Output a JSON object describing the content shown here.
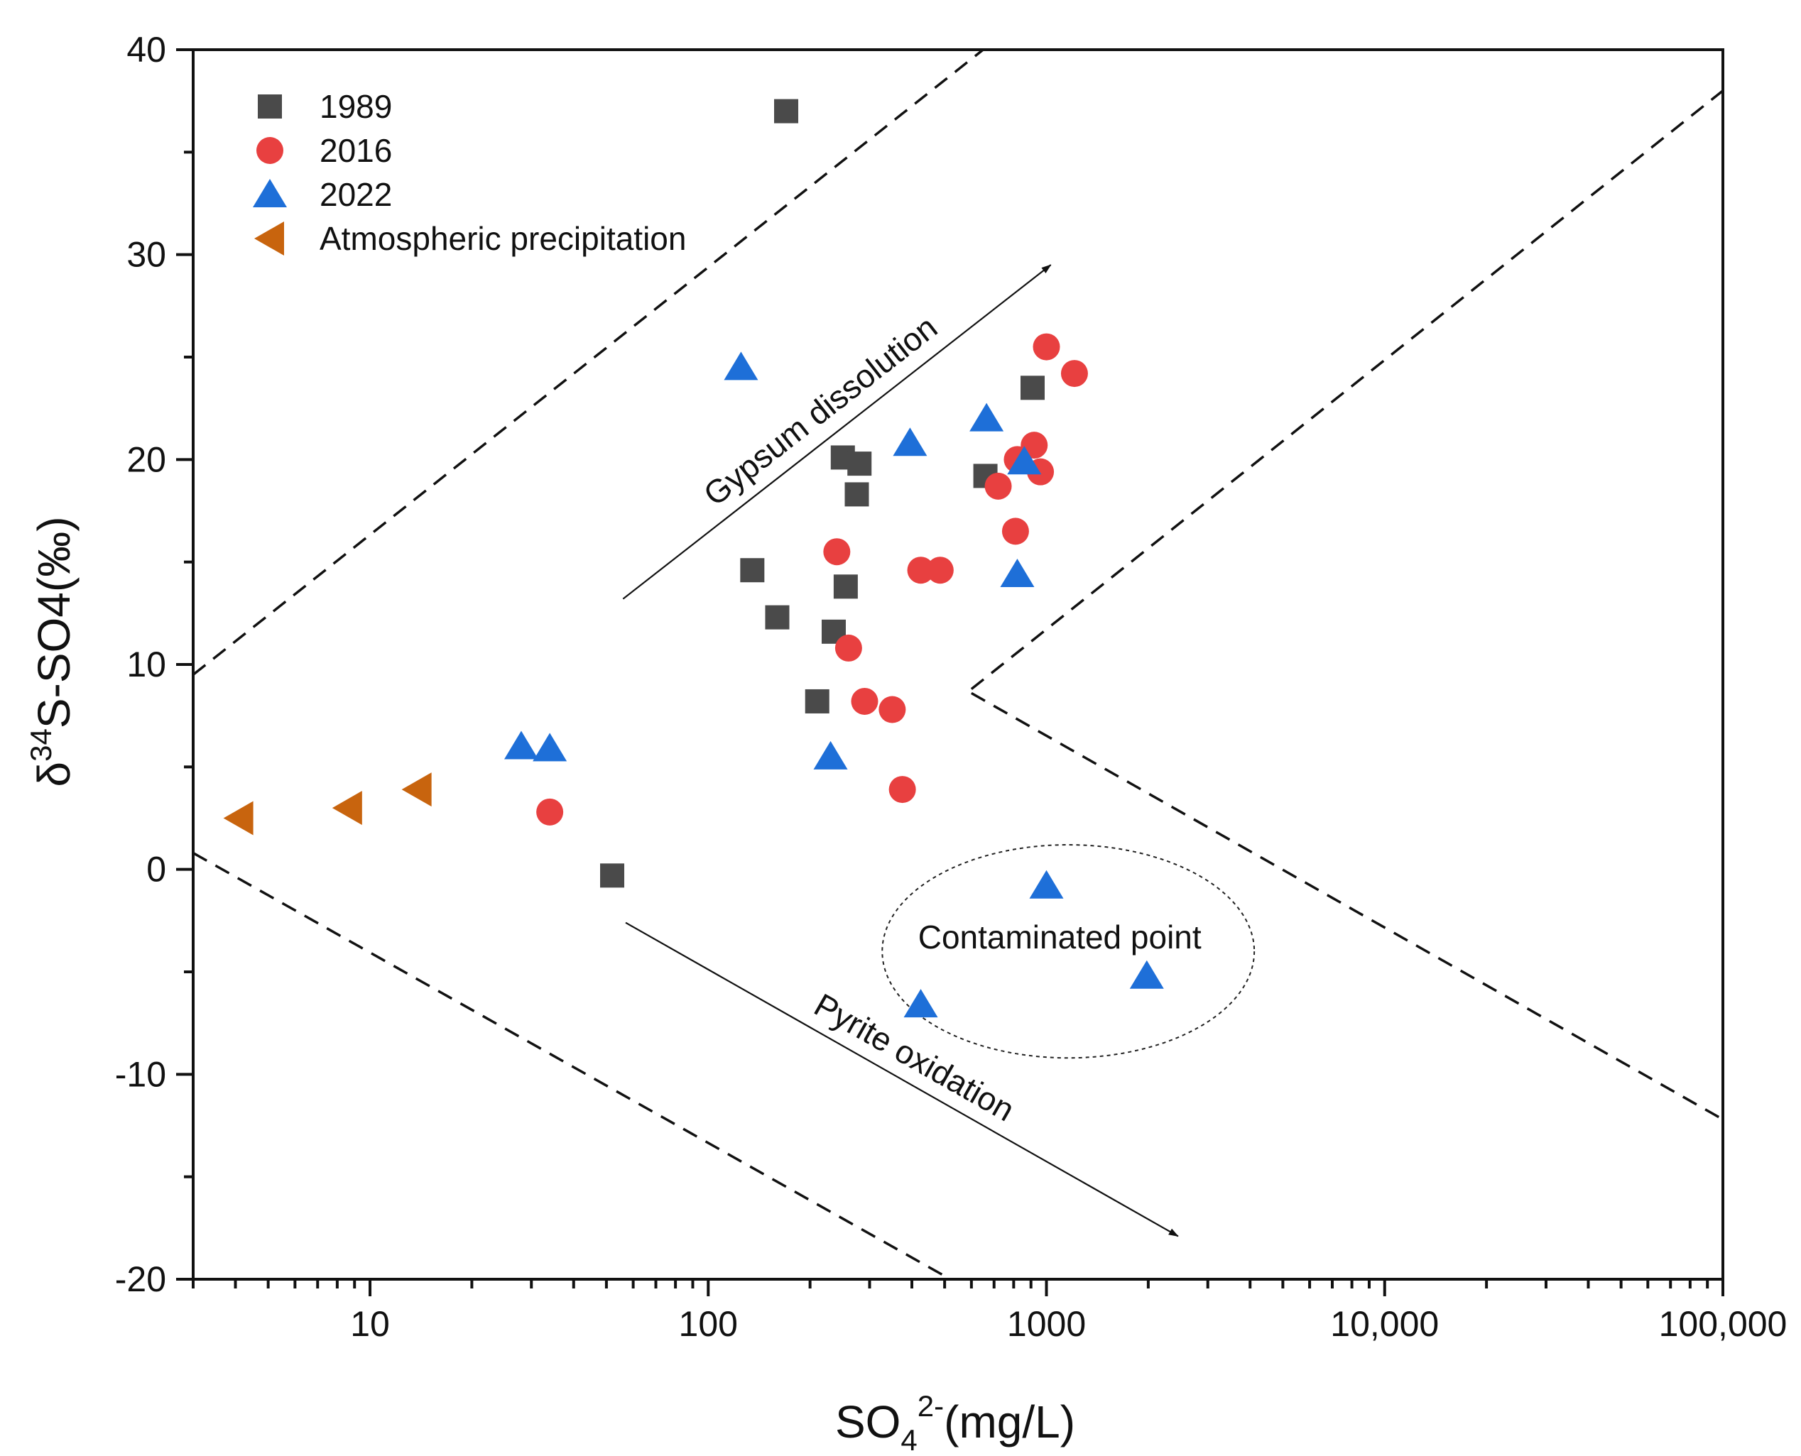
{
  "chart_data": {
    "type": "scatter",
    "title": "",
    "xlabel": {
      "base": "SO",
      "sub": "4",
      "sup": "2-",
      "unit": "(mg/L)"
    },
    "ylabel": {
      "pre": "δ",
      "sup": "34",
      "post": "S-SO4(‰)"
    },
    "xscale": "log",
    "xlim": [
      3,
      100000
    ],
    "ylim": [
      -20,
      40
    ],
    "x_ticks": [
      {
        "value": 10,
        "label": "10"
      },
      {
        "value": 100,
        "label": "100"
      },
      {
        "value": 1000,
        "label": "1000"
      },
      {
        "value": 10000,
        "label": "10,000"
      },
      {
        "value": 100000,
        "label": "100,000"
      }
    ],
    "y_ticks": [
      {
        "value": 40,
        "label": "40"
      },
      {
        "value": 30,
        "label": "30"
      },
      {
        "value": 20,
        "label": "20"
      },
      {
        "value": 10,
        "label": "10"
      },
      {
        "value": 0,
        "label": "0"
      },
      {
        "value": -10,
        "label": "-10"
      },
      {
        "value": -20,
        "label": "-20"
      }
    ],
    "series": [
      {
        "name": "1989",
        "marker": "square",
        "color": "#4a4a4a",
        "points": [
          [
            170,
            37
          ],
          [
            910,
            23.5
          ],
          [
            250,
            20.1
          ],
          [
            280,
            19.8
          ],
          [
            660,
            19.2
          ],
          [
            275,
            18.3
          ],
          [
            135,
            14.6
          ],
          [
            255,
            13.8
          ],
          [
            160,
            12.3
          ],
          [
            235,
            11.6
          ],
          [
            210,
            8.2
          ],
          [
            52,
            -0.3
          ]
        ]
      },
      {
        "name": "2016",
        "marker": "circle",
        "color": "#e84040",
        "points": [
          [
            1000,
            25.5
          ],
          [
            1210,
            24.2
          ],
          [
            920,
            20.7
          ],
          [
            820,
            20.0
          ],
          [
            960,
            19.4
          ],
          [
            720,
            18.7
          ],
          [
            810,
            16.5
          ],
          [
            240,
            15.5
          ],
          [
            425,
            14.6
          ],
          [
            485,
            14.6
          ],
          [
            260,
            10.8
          ],
          [
            290,
            8.2
          ],
          [
            350,
            7.8
          ],
          [
            375,
            3.9
          ],
          [
            34,
            2.8
          ]
        ]
      },
      {
        "name": "2022",
        "marker": "triangle-up",
        "color": "#1e6fd8",
        "points": [
          [
            125,
            24.5
          ],
          [
            665,
            22.0
          ],
          [
            395,
            20.8
          ],
          [
            860,
            19.9
          ],
          [
            820,
            14.4
          ],
          [
            28,
            6.0
          ],
          [
            34,
            5.9
          ],
          [
            230,
            5.5
          ],
          [
            1000,
            -0.8
          ],
          [
            1980,
            -5.2
          ],
          [
            425,
            -6.6
          ]
        ]
      },
      {
        "name": "Atmospheric precipitation",
        "marker": "triangle-left",
        "color": "#c8640e",
        "points": [
          [
            4.1,
            2.5
          ],
          [
            8.6,
            3.0
          ],
          [
            13.8,
            3.9
          ]
        ]
      }
    ],
    "boundary_lines": [
      [
        [
          3,
          9.5
        ],
        [
          650,
          40
        ]
      ],
      [
        [
          600,
          8.8
        ],
        [
          100000,
          38
        ]
      ],
      [
        [
          600,
          8.6
        ],
        [
          100000,
          -12.2
        ]
      ],
      [
        [
          3,
          0.8
        ],
        [
          520,
          -20
        ]
      ]
    ],
    "annotations": {
      "gypsum_label": "Gypsum dissolution",
      "pyrite_label": "Pyrite oxidation",
      "contaminated_label": "Contaminated point",
      "gypsum_arrow": [
        [
          56,
          13.2
        ],
        [
          1030,
          29.5
        ]
      ],
      "pyrite_arrow": [
        [
          57,
          -2.6
        ],
        [
          2450,
          -17.9
        ]
      ],
      "ellipse_center": [
        1160,
        -4.0
      ],
      "ellipse_radii_in_decades": 0.55,
      "ellipse_radii_in_y": 5.2
    },
    "legend": {
      "position": "top-left"
    },
    "grid": false
  }
}
